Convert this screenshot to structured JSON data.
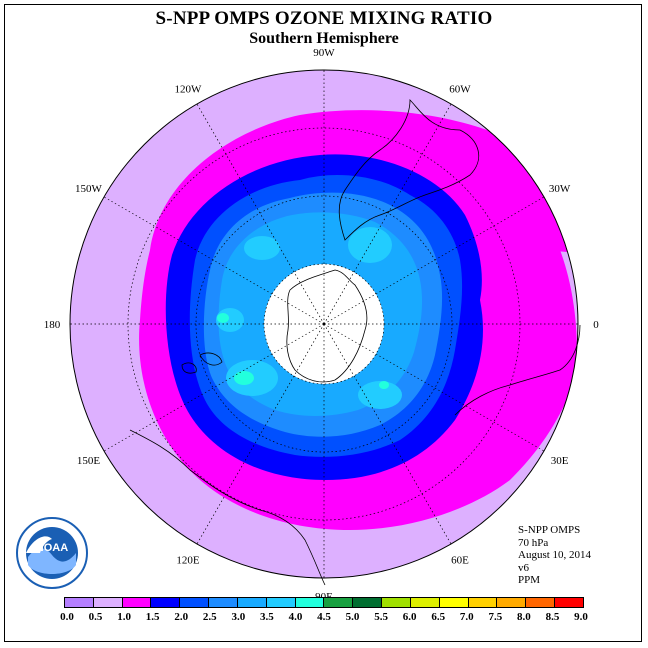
{
  "title": "S-NPP OMPS OZONE MIXING RATIO",
  "subtitle": "Southern Hemisphere",
  "longitude_labels": [
    {
      "text": "90W"
    },
    {
      "text": "60W"
    },
    {
      "text": "30W"
    },
    {
      "text": "0"
    },
    {
      "text": "30E"
    },
    {
      "text": "60E"
    },
    {
      "text": "90E"
    },
    {
      "text": "120E"
    },
    {
      "text": "150E"
    },
    {
      "text": "180"
    },
    {
      "text": "150W"
    },
    {
      "text": "120W"
    }
  ],
  "info": {
    "instrument": "S-NPP OMPS",
    "level": "70 hPa",
    "date": "August 10, 2014",
    "version": "v6",
    "units": "PPM"
  },
  "logo": {
    "text": "NOAA",
    "icon": "noaa-logo-icon"
  },
  "colorbar": {
    "ticks": [
      "0.0",
      "0.5",
      "1.0",
      "1.5",
      "2.0",
      "2.5",
      "3.0",
      "3.5",
      "4.0",
      "4.5",
      "5.0",
      "5.5",
      "6.0",
      "6.5",
      "7.0",
      "7.5",
      "8.0",
      "8.5",
      "9.0"
    ],
    "colors": [
      "#b57fff",
      "#ddb0ff",
      "#ff00ff",
      "#0000ff",
      "#0050ff",
      "#1e8cff",
      "#18aaff",
      "#22ccff",
      "#22ffdd",
      "#18a040",
      "#006e30",
      "#a0e000",
      "#ddf000",
      "#ffff00",
      "#ffd000",
      "#ffaa00",
      "#ff6600",
      "#ff0000",
      "#8b5a3a"
    ]
  },
  "chart_data": {
    "type": "heatmap",
    "projection": "south polar stereographic",
    "variable": "ozone mixing ratio",
    "units": "PPM",
    "levels": [
      0.0,
      0.5,
      1.0,
      1.5,
      2.0,
      2.5,
      3.0,
      3.5,
      4.0,
      4.5,
      5.0,
      5.5,
      6.0,
      6.5,
      7.0,
      7.5,
      8.0,
      8.5,
      9.0
    ],
    "visible_bands": [
      {
        "range": [
          0.5,
          1.0
        ],
        "color": "#ddb0ff"
      },
      {
        "range": [
          1.0,
          1.5
        ],
        "color": "#ff00ff"
      },
      {
        "range": [
          1.5,
          2.0
        ],
        "color": "#0000ff"
      },
      {
        "range": [
          2.0,
          2.5
        ],
        "color": "#0050ff"
      },
      {
        "range": [
          2.5,
          3.0
        ],
        "color": "#1e8cff"
      },
      {
        "range": [
          3.0,
          3.5
        ],
        "color": "#18aaff"
      },
      {
        "range": [
          3.5,
          4.0
        ],
        "color": "#22ccff"
      },
      {
        "range": [
          4.0,
          4.5
        ],
        "color": "#22ffdd"
      }
    ],
    "missing_data_pole_cap": true
  }
}
